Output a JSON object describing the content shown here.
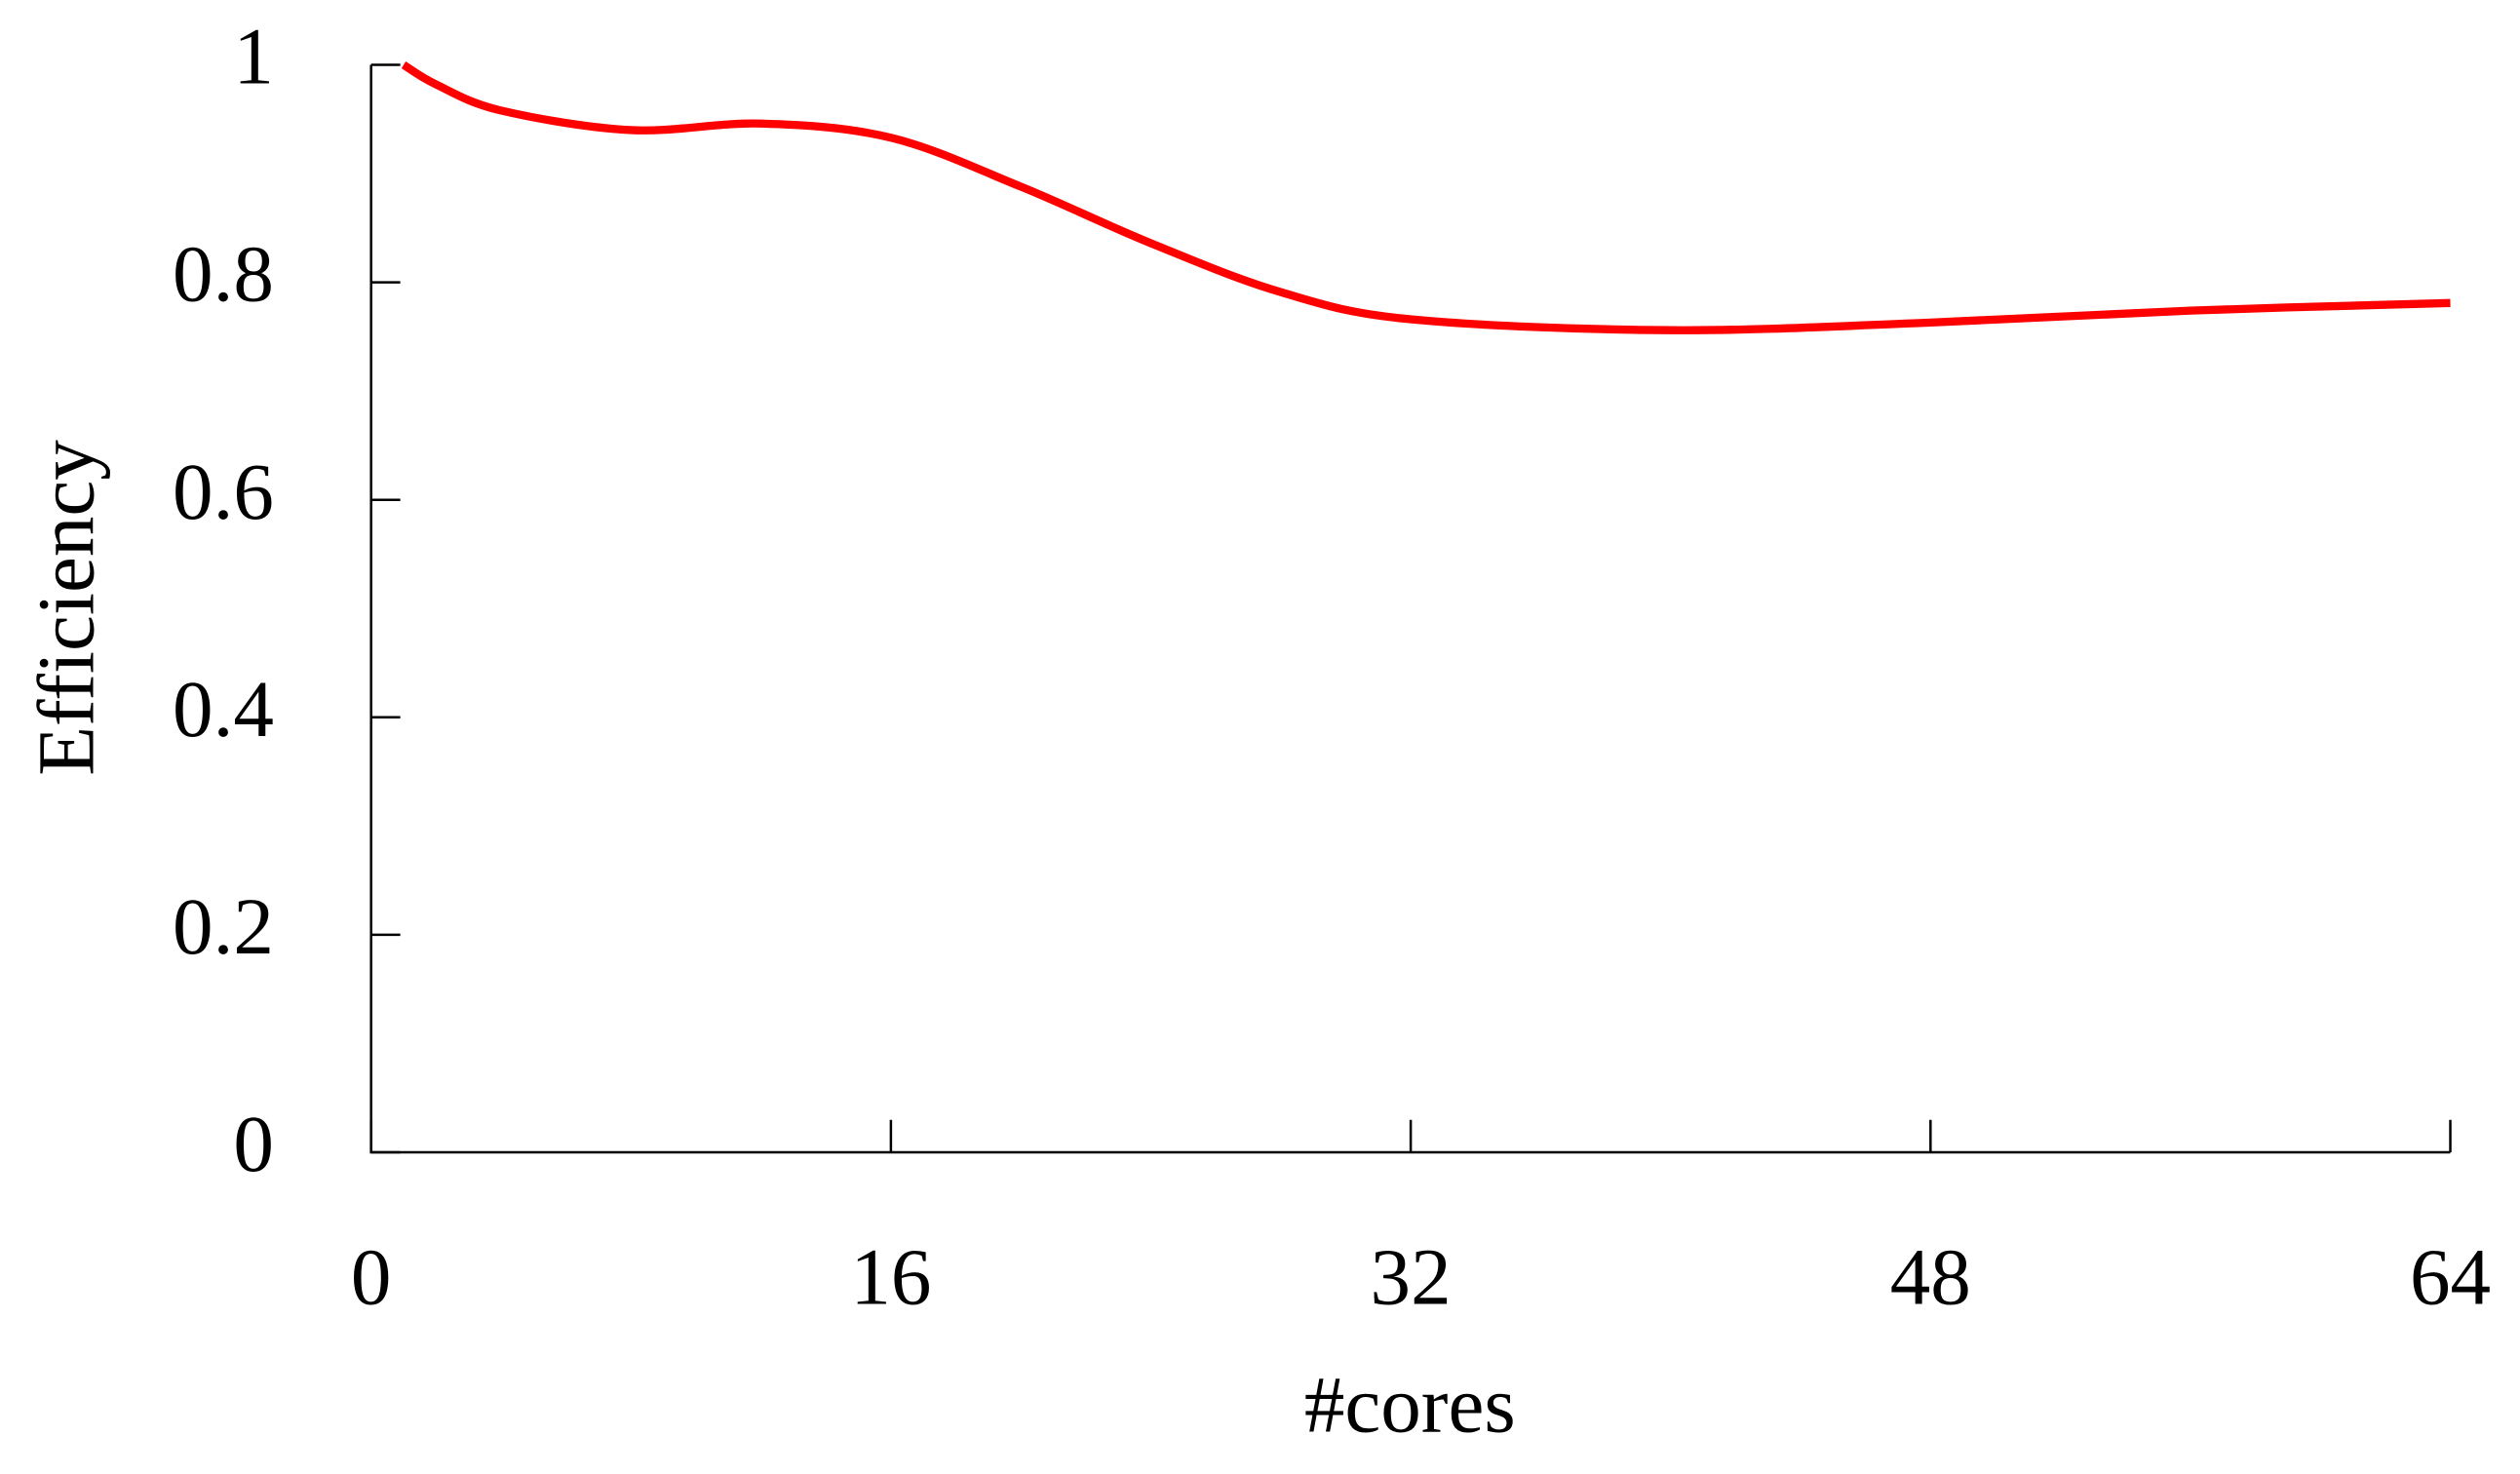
{
  "chart_data": {
    "type": "line",
    "xlabel": "#cores",
    "ylabel": "Efficiency",
    "x": [
      1,
      2,
      4,
      8,
      12,
      16,
      20,
      24,
      28,
      32,
      40,
      48,
      56,
      64
    ],
    "series": [
      {
        "color": "#ff0000",
        "values": [
          1,
          0.982,
          0.958,
          0.94,
          0.946,
          0.933,
          0.888,
          0.836,
          0.791,
          0.766,
          0.756,
          0.763,
          0.774,
          0.781
        ]
      }
    ],
    "xlim": [
      0,
      64
    ],
    "ylim": [
      0,
      1
    ],
    "xticks": [
      0,
      16,
      32,
      48,
      64
    ],
    "yticks": [
      0,
      0.2,
      0.4,
      0.6,
      0.8,
      1
    ]
  }
}
